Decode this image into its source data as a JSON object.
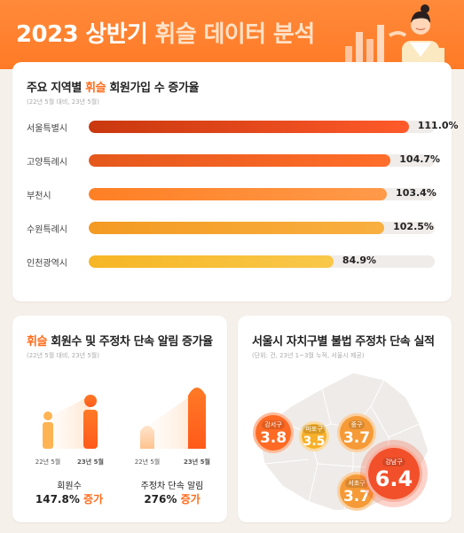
{
  "header": {
    "title_plain": "2023 상반기",
    "title_accent": "휘슬 데이터 분석"
  },
  "card1": {
    "title_prefix": "주요 지역별",
    "title_accent": "휘슬",
    "title_suffix": "회원가입 수 증가율",
    "note": "(22년 5월 대비, 23년 5월)"
  },
  "card2": {
    "title_accent": "휘슬",
    "title_suffix": "회원수 및 주정차 단속 알림 증가율",
    "note": "(22년 5월 대비, 23년 5월)",
    "group1_label": "회원수",
    "group1_value": "147.8%",
    "group1_inc": "증가",
    "group2_label": "주정차 단속 알림",
    "group2_value": "276%",
    "group2_inc": "증가",
    "cap_22": "22년 5월",
    "cap_23": "23년 5월"
  },
  "card3": {
    "title": "서울시 자치구별 불법 주정차 단속 실적",
    "note": "(단위: 건, 23년 1~3월 누적, 서울시 제공)"
  },
  "chart_data": [
    {
      "type": "bar",
      "orientation": "horizontal",
      "categories": [
        "서울특별시",
        "고양특례시",
        "부천시",
        "수원특례시",
        "인천광역시"
      ],
      "values": [
        111.0,
        104.7,
        103.4,
        102.5,
        84.9
      ],
      "value_labels": [
        "111.0%",
        "104.7%",
        "103.4%",
        "102.5%",
        "84.9%"
      ],
      "colors": [
        "#e04a12",
        "#ff6a24",
        "#ff8a2e",
        "#f6a12a",
        "#f7b92f"
      ],
      "xlim": [
        0,
        120
      ]
    },
    {
      "type": "bar",
      "groups": [
        "회원수",
        "주정차 단속 알림"
      ],
      "categories": [
        "22년 5월",
        "23년 5월"
      ],
      "series": [
        {
          "values": [
            100,
            247.8
          ]
        },
        {
          "values": [
            100,
            376
          ]
        }
      ]
    },
    {
      "type": "scatter",
      "points": [
        {
          "name": "강서구",
          "value": 3.8,
          "color": "#ff6a24"
        },
        {
          "name": "마포구",
          "value": 3.5,
          "color": "#f7b02a"
        },
        {
          "name": "중구",
          "value": 3.7,
          "color": "#f59a36"
        },
        {
          "name": "서초구",
          "value": 3.7,
          "color": "#f59a36"
        },
        {
          "name": "강남구",
          "value": 6.4,
          "color": "#f2502a"
        }
      ]
    }
  ]
}
